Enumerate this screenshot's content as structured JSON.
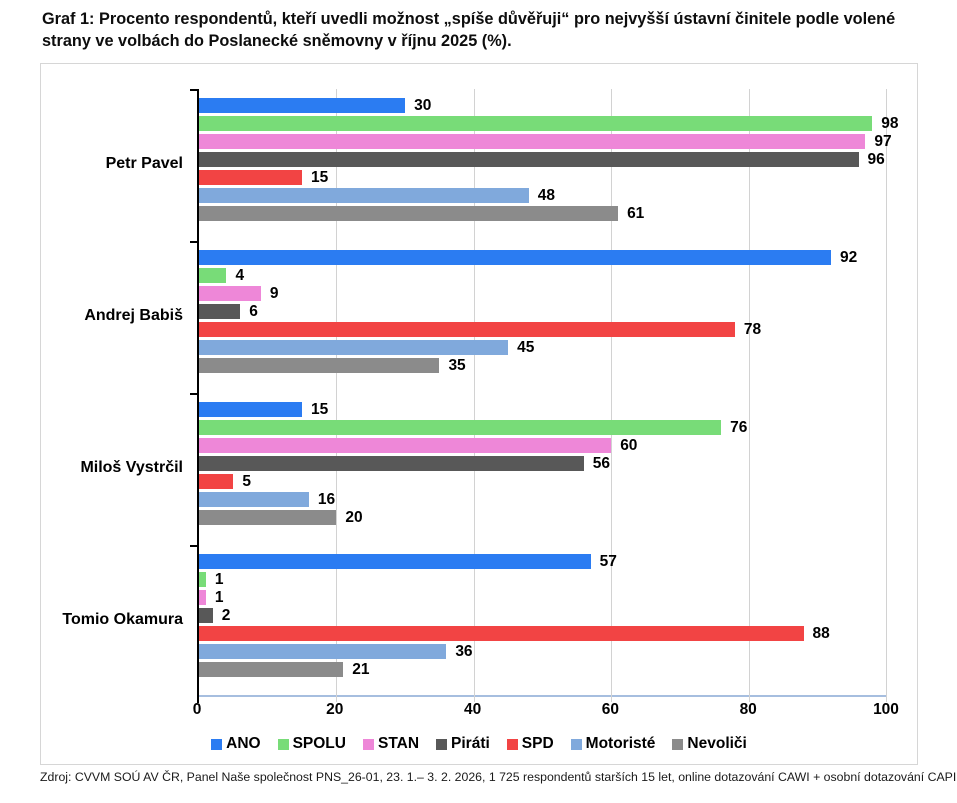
{
  "title": "Graf 1: Procento respondentů, kteří uvedli možnost „spíše důvěřuji“ pro nejvyšší ústavní činitele podle volené strany ve volbách do Poslanecké sněmovny v říjnu 2025 (%).",
  "source": "Zdroj: CVVM SOÚ AV ČR, Panel Naše společnost PNS_26-01, 23. 1.– 3. 2. 2026, 1 725 respondentů starších 15 let, online dotazování CAWI + osobní dotazování CAPI.",
  "chart_data": {
    "type": "bar",
    "orientation": "horizontal",
    "title": "Graf 1: Procento respondentů, kteří uvedli možnost „spíše důvěřuji“ pro nejvyšší ústavní činitele podle volené strany ve volbách do Poslanecké sněmovny v říjnu 2025 (%).",
    "categories": [
      "Petr Pavel",
      "Andrej Babiš",
      "Miloš Vystrčil",
      "Tomio Okamura"
    ],
    "series": [
      {
        "name": "ANO",
        "color": "#2B7CF2",
        "values": [
          30,
          92,
          15,
          57
        ]
      },
      {
        "name": "SPOLU",
        "color": "#78DC78",
        "values": [
          98,
          4,
          76,
          1
        ]
      },
      {
        "name": "STAN",
        "color": "#EE87D8",
        "values": [
          97,
          9,
          60,
          1
        ]
      },
      {
        "name": "Piráti",
        "color": "#585858",
        "values": [
          96,
          6,
          56,
          2
        ]
      },
      {
        "name": "SPD",
        "color": "#F24444",
        "values": [
          15,
          78,
          5,
          88
        ]
      },
      {
        "name": "Motoristé",
        "color": "#80A9DC",
        "values": [
          48,
          45,
          16,
          36
        ]
      },
      {
        "name": "Nevoliči",
        "color": "#8B8B8B",
        "values": [
          61,
          35,
          20,
          21
        ]
      }
    ],
    "xlim": [
      0,
      100
    ],
    "xticks": [
      0,
      20,
      40,
      60,
      80,
      100
    ],
    "grid": true,
    "legend_position": "bottom",
    "colors": {
      "grid": "#d2d2d2",
      "x_axis_line": "#a6bedf",
      "y_axis_line": "#000000",
      "chart_border": "#d6d6d6",
      "value_label": "#000000"
    }
  }
}
